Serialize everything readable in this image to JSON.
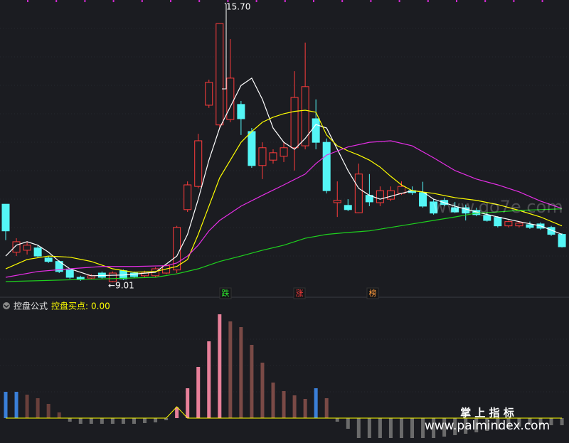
{
  "chart_data": [
    {
      "type": "candlestick",
      "open": [
        11.03,
        9.79,
        9.84,
        9.9,
        9.64,
        9.55,
        9.33,
        9.14,
        9.12,
        9.25,
        9.03,
        9.31,
        9.25,
        9.18,
        9.18,
        9.25,
        9.33,
        10.89,
        11.49,
        13.59,
        13.08,
        13.22,
        13.61,
        12.91,
        12.03,
        12.17,
        12.27,
        12.49,
        12.54,
        13.24,
        12.63,
        11.07,
        11.0,
        10.81,
        11.26,
        11.07,
        11.16,
        11.31,
        11.38,
        11.33,
        11.09,
        11.13,
        10.94,
        10.94,
        10.87,
        10.74,
        10.69,
        10.47,
        10.47,
        10.5,
        10.52,
        10.43,
        10.25
      ],
      "high": [
        11.03,
        10.15,
        10.06,
        9.97,
        9.69,
        9.58,
        9.36,
        9.18,
        9.22,
        9.29,
        9.29,
        9.34,
        9.29,
        9.31,
        9.4,
        9.49,
        10.47,
        11.62,
        12.85,
        14.25,
        15.7,
        15.3,
        13.7,
        13.0,
        12.63,
        12.45,
        12.63,
        14.47,
        15.21,
        13.74,
        12.73,
        11.62,
        11.16,
        12.08,
        11.81,
        11.49,
        11.49,
        11.62,
        11.49,
        11.61,
        11.16,
        11.2,
        11.09,
        11.02,
        10.94,
        10.8,
        10.72,
        10.61,
        10.58,
        10.58,
        10.56,
        10.47,
        10.28
      ],
      "low": [
        10.1,
        9.69,
        9.73,
        9.66,
        9.51,
        9.25,
        9.1,
        9.05,
        9.09,
        9.1,
        9.01,
        9.07,
        9.12,
        9.14,
        9.14,
        9.22,
        9.25,
        10.83,
        11.44,
        13.52,
        13.0,
        13.15,
        12.82,
        11.97,
        11.68,
        12.08,
        12.12,
        11.9,
        12.45,
        12.45,
        11.31,
        10.7,
        10.85,
        10.8,
        10.98,
        10.98,
        11.11,
        11.27,
        11.27,
        10.94,
        10.76,
        10.98,
        10.8,
        10.61,
        10.72,
        10.58,
        10.43,
        10.43,
        10.43,
        10.39,
        10.37,
        10.21,
        9.91
      ],
      "close": [
        10.34,
        10.06,
        9.97,
        9.69,
        9.55,
        9.29,
        9.14,
        9.09,
        9.18,
        9.14,
        9.25,
        9.1,
        9.16,
        9.25,
        9.36,
        9.44,
        10.43,
        11.53,
        12.67,
        14.18,
        15.7,
        14.29,
        13.24,
        12.03,
        12.49,
        12.36,
        12.49,
        13.79,
        14.07,
        12.63,
        11.38,
        11.13,
        10.89,
        11.81,
        11.09,
        11.38,
        11.38,
        11.49,
        11.33,
        10.98,
        10.8,
        11.02,
        10.83,
        10.8,
        10.76,
        10.61,
        10.47,
        10.58,
        10.54,
        10.43,
        10.41,
        10.25,
        9.93
      ],
      "up_color": "#ff3c3c",
      "down_color": "#54f6f6",
      "ylim": [
        8.68,
        16.31
      ],
      "lines": [
        {
          "color": "#ffffff",
          "x": [
            0,
            1,
            2,
            3,
            4,
            5,
            6,
            8,
            11,
            14,
            16,
            17,
            18,
            19,
            20,
            21,
            22,
            23,
            24,
            25,
            26,
            27,
            28,
            29,
            30,
            31,
            32,
            33,
            34,
            35,
            37,
            38,
            39,
            40,
            42,
            44,
            46,
            48,
            50,
            52
          ],
          "values": [
            9.69,
            9.97,
            10.06,
            9.97,
            9.79,
            9.55,
            9.36,
            9.18,
            9.2,
            9.27,
            9.69,
            10.25,
            11.16,
            12.17,
            13.0,
            13.55,
            14.1,
            14.29,
            13.74,
            13.0,
            12.63,
            12.45,
            12.73,
            13.09,
            13.0,
            12.45,
            11.9,
            11.44,
            11.26,
            11.16,
            11.31,
            11.38,
            11.35,
            11.16,
            10.98,
            10.83,
            10.7,
            10.58,
            10.47,
            10.25
          ]
        },
        {
          "color": "#ffff00",
          "x": [
            0,
            2,
            4,
            6,
            8,
            10,
            12,
            14,
            16,
            17,
            18,
            19,
            20,
            21,
            22,
            23,
            24,
            25,
            26,
            27,
            28,
            29,
            30,
            31,
            32,
            33,
            34,
            35,
            36,
            37,
            38,
            40,
            42,
            44,
            46,
            48,
            50,
            52
          ],
          "values": [
            9.36,
            9.6,
            9.69,
            9.66,
            9.55,
            9.36,
            9.27,
            9.29,
            9.42,
            9.6,
            10.25,
            10.98,
            11.71,
            12.17,
            12.63,
            12.91,
            13.15,
            13.28,
            13.37,
            13.43,
            13.46,
            13.41,
            12.82,
            12.54,
            12.41,
            12.3,
            12.17,
            11.99,
            11.75,
            11.53,
            11.38,
            11.31,
            11.2,
            11.13,
            11.02,
            10.87,
            10.7,
            10.47
          ]
        },
        {
          "color": "#e62ee6",
          "x": [
            0,
            3,
            6,
            9,
            12,
            15,
            16,
            17,
            18,
            19,
            20,
            22,
            24,
            26,
            28,
            29,
            30,
            32,
            34,
            36,
            38,
            40,
            42,
            44,
            46,
            48,
            50,
            52
          ],
          "values": [
            9.14,
            9.29,
            9.36,
            9.42,
            9.42,
            9.44,
            9.51,
            9.69,
            9.97,
            10.34,
            10.61,
            10.98,
            11.26,
            11.53,
            11.81,
            12.08,
            12.3,
            12.51,
            12.63,
            12.67,
            12.54,
            12.23,
            11.9,
            11.68,
            11.53,
            11.35,
            11.11,
            10.92
          ]
        },
        {
          "color": "#1ed21e",
          "x": [
            0,
            8,
            14,
            16,
            18,
            20,
            22,
            24,
            26,
            28,
            30,
            32,
            34,
            36,
            38,
            40,
            42,
            44,
            46,
            48,
            50,
            52
          ],
          "values": [
            9.03,
            9.09,
            9.14,
            9.23,
            9.36,
            9.55,
            9.69,
            9.84,
            9.97,
            10.15,
            10.25,
            10.3,
            10.34,
            10.43,
            10.52,
            10.61,
            10.7,
            10.8,
            10.83,
            10.87,
            10.89,
            10.91
          ]
        }
      ],
      "annotations": [
        "15.70",
        "←9.01"
      ],
      "badges": [
        "跌",
        "涨",
        "榜"
      ]
    },
    {
      "type": "bar",
      "title": "控盘公式",
      "label": "控盘买点:",
      "value": 0,
      "value_label": "0.00",
      "ylim": [
        -35,
        150
      ],
      "values": [
        37,
        37,
        33,
        28,
        20,
        8,
        -5,
        -8,
        -8,
        -8,
        -8,
        -8,
        -8,
        -7,
        -6,
        -3,
        15,
        42,
        72,
        108,
        146,
        136,
        128,
        103,
        78,
        50,
        38,
        32,
        27,
        42,
        28,
        -5,
        -15,
        -28,
        -28,
        -28,
        -28,
        -28,
        -28,
        -28,
        -28,
        -26,
        -24,
        -22,
        -20,
        -18,
        -16,
        -14,
        -12,
        -10,
        -10,
        -10,
        -10
      ],
      "colors": [
        "#3a7fd8",
        "#3a7fd8",
        "#6a403b",
        "#6a403b",
        "#6a403b",
        "#6a403b",
        "#6b6b6b",
        "#6b6b6b",
        "#6b6b6b",
        "#6b6b6b",
        "#6b6b6b",
        "#6b6b6b",
        "#6b6b6b",
        "#6b6b6b",
        "#6b6b6b",
        "#6b6b6b",
        "#e8809a",
        "#e8809a",
        "#e8809a",
        "#e8809a",
        "#e8809a",
        "#7a4a46",
        "#7a4a46",
        "#7a4a46",
        "#7a4a46",
        "#7a4a46",
        "#7a4a46",
        "#7a4a46",
        "#7a4a46",
        "#3a7fd8",
        "#7a4a46",
        "#6b6b6b",
        "#6b6b6b",
        "#6b6b6b",
        "#6b6b6b",
        "#6b6b6b",
        "#6b6b6b",
        "#6b6b6b",
        "#6b6b6b",
        "#6b6b6b",
        "#6b6b6b",
        "#6b6b6b",
        "#6b6b6b",
        "#6b6b6b",
        "#6b6b6b",
        "#6b6b6b",
        "#6b6b6b",
        "#6b6b6b",
        "#6b6b6b",
        "#6b6b6b",
        "#6b6b6b",
        "#6b6b6b",
        "#6b6b6b"
      ],
      "line": {
        "color": "#ffff00",
        "x": [
          0,
          15,
          16,
          17,
          52
        ],
        "values": [
          0,
          0,
          16,
          0,
          0
        ]
      }
    }
  ],
  "watermarks": [
    "www.go7e.com",
    "掌 上 指 标",
    "www.palmindex.com"
  ]
}
